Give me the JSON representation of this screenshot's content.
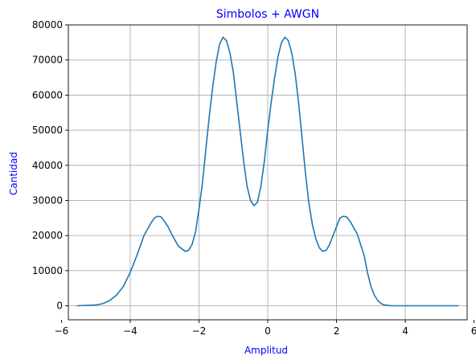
{
  "chart_data": {
    "type": "line",
    "title": "Simbolos + AWGN",
    "xlabel": "Amplitud",
    "ylabel": "Cantidad",
    "xlim": [
      -5.8,
      5.8
    ],
    "ylim": [
      -4000,
      80000
    ],
    "xticks": [
      -6,
      -4,
      -2,
      0,
      2,
      4,
      6
    ],
    "xtick_labels": [
      "−6",
      "−4",
      "−2",
      "0",
      "2",
      "4",
      "6"
    ],
    "yticks": [
      0,
      10000,
      20000,
      30000,
      40000,
      50000,
      60000,
      70000,
      80000
    ],
    "ytick_labels": [
      "0",
      "10000",
      "20000",
      "30000",
      "40000",
      "50000",
      "60000",
      "70000",
      "80000"
    ],
    "grid": true,
    "color": "#1f77b4",
    "series": [
      {
        "x": [
          -5.55,
          -5.0,
          -4.8,
          -4.6,
          -4.4,
          -4.2,
          -4.0,
          -3.8,
          -3.6,
          -3.4,
          -3.3,
          -3.2,
          -3.1,
          -3.0,
          -2.9,
          -2.8,
          -2.6,
          -2.4,
          -2.3,
          -2.2,
          -2.1,
          -2.0,
          -1.9,
          -1.8,
          -1.7,
          -1.6,
          -1.5,
          -1.4,
          -1.3,
          -1.2,
          -1.1,
          -1.0,
          -0.9,
          -0.8,
          -0.7,
          -0.6,
          -0.5,
          -0.4,
          -0.3,
          -0.2,
          -0.1,
          0.0,
          0.1,
          0.2,
          0.3,
          0.4,
          0.5,
          0.6,
          0.7,
          0.8,
          0.9,
          1.0,
          1.1,
          1.2,
          1.3,
          1.4,
          1.5,
          1.6,
          1.7,
          1.8,
          1.9,
          2.0,
          2.1,
          2.2,
          2.3,
          2.4,
          2.6,
          2.8,
          2.9,
          3.0,
          3.1,
          3.2,
          3.3,
          3.4,
          3.6,
          3.8,
          4.0,
          4.2,
          4.4,
          4.6,
          4.8,
          5.0,
          5.55
        ],
        "y": [
          0,
          200,
          600,
          1500,
          3000,
          5500,
          9500,
          14500,
          20000,
          23500,
          25000,
          25500,
          25300,
          24000,
          22500,
          20500,
          17000,
          15500,
          15800,
          17500,
          21000,
          27500,
          35000,
          44500,
          54000,
          62500,
          69500,
          74500,
          76500,
          75500,
          72000,
          66500,
          58000,
          49500,
          41000,
          34000,
          30000,
          28500,
          29500,
          34000,
          41000,
          50000,
          58000,
          65000,
          71000,
          75000,
          76500,
          75500,
          72000,
          66000,
          57500,
          47500,
          37500,
          29000,
          23000,
          19000,
          16500,
          15500,
          15800,
          17500,
          20000,
          22500,
          25000,
          25500,
          25300,
          24000,
          20500,
          14500,
          9500,
          5500,
          3000,
          1500,
          600,
          200,
          0,
          0,
          0,
          0,
          0,
          0,
          0,
          0,
          0
        ]
      }
    ]
  }
}
